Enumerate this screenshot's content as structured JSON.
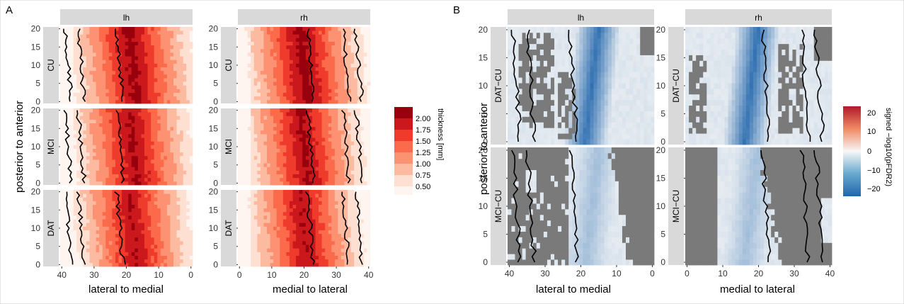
{
  "panel_letters": [
    "A",
    "B"
  ],
  "colorbars": {
    "A": {
      "title": "thickness [mm]",
      "ticks": [
        "2.00",
        "1.75",
        "1.50",
        "1.25",
        "1.00",
        "0.75",
        "0.50"
      ],
      "colors": [
        "#99000d",
        "#cb181d",
        "#ef3b2c",
        "#fb6a4a",
        "#fc9272",
        "#fcbba1",
        "#fee0d2",
        "#fff5f0"
      ]
    },
    "B": {
      "title": "signed −log10(pFDR2)",
      "ticks": [
        "20",
        "10",
        "0",
        "−10",
        "−20"
      ],
      "colors": [
        "#b2182b",
        "#f7f7f7",
        "#2166ac"
      ],
      "masked_color": "#7a7a7a"
    }
  },
  "chart_data": [
    {
      "type": "heatmap",
      "panel": "A",
      "facet_cols": [
        "lh",
        "rh"
      ],
      "facet_rows": [
        "CU",
        "MCI",
        "DAT"
      ],
      "ylabel": "posterior to anterior",
      "xlabels": [
        "lateral to medial",
        "medial to lateral"
      ],
      "x_ticks": [
        [
          "40",
          "30",
          "20",
          "10",
          "0"
        ],
        [
          "0",
          "10",
          "20",
          "30",
          "40"
        ]
      ],
      "y_ticks": [
        "0",
        "5",
        "10",
        "15",
        "20"
      ],
      "xlim": [
        0,
        40
      ],
      "ylim": [
        0,
        20
      ],
      "x_reversed_in_lh": true,
      "approx_thickness_bands_mm": {
        "lh": [
          0.5,
          0.75,
          1.0,
          1.25,
          1.5,
          1.75,
          2.0,
          2.0,
          1.75,
          1.5,
          1.25,
          1.0
        ],
        "rh": [
          1.0,
          1.25,
          1.5,
          1.75,
          2.0,
          2.0,
          1.75,
          1.5,
          1.25,
          1.0,
          0.75,
          0.5
        ]
      },
      "boundary_lines_x": {
        "lh": [
          38,
          34,
          22
        ],
        "rh": [
          22,
          33,
          37
        ]
      }
    },
    {
      "type": "heatmap",
      "panel": "B",
      "facet_cols": [
        "lh",
        "rh"
      ],
      "facet_rows": [
        "DAT−CU",
        "MCI−CU"
      ],
      "ylabel": "posterior to anterior",
      "xlabels": [
        "lateral to medial",
        "medial to lateral"
      ],
      "x_ticks": [
        [
          "40",
          "30",
          "20",
          "10",
          "0"
        ],
        [
          "0",
          "10",
          "20",
          "30",
          "40"
        ]
      ],
      "y_ticks": [
        "0",
        "5",
        "10",
        "15",
        "20"
      ],
      "xlim": [
        0,
        40
      ],
      "ylim": [
        0,
        20
      ],
      "approx_min_value_column_x": 18,
      "boundary_lines_x": {
        "lh": [
          38,
          34,
          22
        ],
        "rh": [
          22,
          33,
          37
        ]
      }
    }
  ]
}
